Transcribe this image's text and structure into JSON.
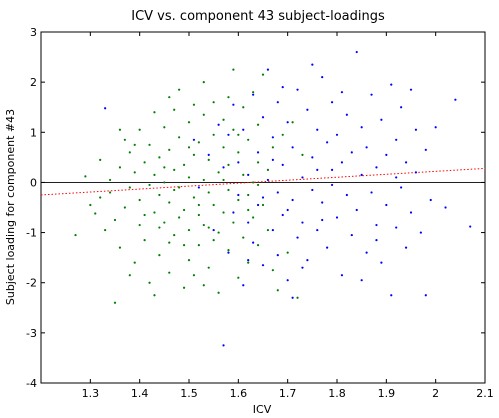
{
  "chart_data": {
    "type": "scatter",
    "title": "ICV vs. component 43 subject-loadings",
    "xlabel": "ICV",
    "ylabel": "Subject loading for component #43",
    "xlim": [
      1.2,
      2.1
    ],
    "ylim": [
      -4,
      3
    ],
    "xticks": [
      "1.3",
      "1.4",
      "1.5",
      "1.6",
      "1.7",
      "1.8",
      "1.9",
      "2",
      "2.1"
    ],
    "yticks": [
      "-4",
      "-3",
      "-2",
      "-1",
      "0",
      "1",
      "2",
      "3"
    ],
    "grid": false,
    "colors": {
      "group_green": "#007f00",
      "group_blue": "#0000ff",
      "fit_line": "#ff0000",
      "zero_line": "#000000"
    },
    "reference_line_y": 0,
    "fit_line": {
      "x": [
        1.2,
        2.1
      ],
      "y": [
        -0.25,
        0.28
      ]
    },
    "series": [
      {
        "points": [
          [
            1.27,
            -1.05
          ],
          [
            1.29,
            0.12
          ],
          [
            1.3,
            -0.45
          ],
          [
            1.31,
            -0.62
          ],
          [
            1.32,
            -0.3
          ],
          [
            1.32,
            0.45
          ],
          [
            1.33,
            -0.95
          ],
          [
            1.34,
            -0.2
          ],
          [
            1.34,
            0.05
          ],
          [
            1.35,
            -2.4
          ],
          [
            1.35,
            -0.75
          ],
          [
            1.36,
            0.3
          ],
          [
            1.36,
            -1.3
          ],
          [
            1.37,
            0.85
          ],
          [
            1.37,
            -0.5
          ],
          [
            1.38,
            -0.1
          ],
          [
            1.38,
            0.6
          ],
          [
            1.39,
            -1.6
          ],
          [
            1.39,
            0.2
          ],
          [
            1.4,
            -0.85
          ],
          [
            1.4,
            1.05
          ],
          [
            1.4,
            -0.35
          ],
          [
            1.41,
            0.4
          ],
          [
            1.41,
            -1.15
          ],
          [
            1.42,
            -0.05
          ],
          [
            1.42,
            0.75
          ],
          [
            1.42,
            -2.0
          ],
          [
            1.43,
            -0.6
          ],
          [
            1.43,
            0.15
          ],
          [
            1.43,
            1.4
          ],
          [
            1.44,
            -1.45
          ],
          [
            1.44,
            0.5
          ],
          [
            1.44,
            -0.25
          ],
          [
            1.45,
            1.1
          ],
          [
            1.45,
            -0.8
          ],
          [
            1.45,
            0.0
          ],
          [
            1.46,
            -1.8
          ],
          [
            1.46,
            0.65
          ],
          [
            1.46,
            -0.4
          ],
          [
            1.46,
            1.7
          ],
          [
            1.47,
            -1.05
          ],
          [
            1.47,
            0.25
          ],
          [
            1.47,
            -0.15
          ],
          [
            1.48,
            0.9
          ],
          [
            1.48,
            -0.7
          ],
          [
            1.48,
            1.85
          ],
          [
            1.49,
            -2.1
          ],
          [
            1.49,
            0.35
          ],
          [
            1.49,
            -0.55
          ],
          [
            1.5,
            1.2
          ],
          [
            1.5,
            -0.95
          ],
          [
            1.5,
            0.1
          ],
          [
            1.5,
            -1.55
          ],
          [
            1.51,
            0.55
          ],
          [
            1.51,
            -0.3
          ],
          [
            1.51,
            1.55
          ],
          [
            1.52,
            -0.65
          ],
          [
            1.52,
            0.8
          ],
          [
            1.52,
            -1.25
          ],
          [
            1.53,
            0.05
          ],
          [
            1.53,
            1.35
          ],
          [
            1.53,
            -0.85
          ],
          [
            1.53,
            2.0
          ],
          [
            1.54,
            -0.2
          ],
          [
            1.54,
            0.45
          ],
          [
            1.54,
            -1.7
          ],
          [
            1.55,
            0.95
          ],
          [
            1.55,
            -0.45
          ],
          [
            1.55,
            1.6
          ],
          [
            1.56,
            -1.0
          ],
          [
            1.56,
            0.2
          ],
          [
            1.56,
            -2.2
          ],
          [
            1.57,
            0.7
          ],
          [
            1.57,
            -0.6
          ],
          [
            1.57,
            1.25
          ],
          [
            1.58,
            -1.35
          ],
          [
            1.58,
            0.35
          ],
          [
            1.58,
            -0.15
          ],
          [
            1.59,
            1.05
          ],
          [
            1.59,
            -0.8
          ],
          [
            1.59,
            2.25
          ],
          [
            1.6,
            -0.35
          ],
          [
            1.6,
            0.6
          ],
          [
            1.6,
            -1.9
          ],
          [
            1.61,
            0.15
          ],
          [
            1.61,
            1.5
          ],
          [
            1.61,
            -1.1
          ],
          [
            1.62,
            -0.25
          ],
          [
            1.62,
            0.85
          ],
          [
            1.62,
            -1.6
          ],
          [
            1.63,
            1.8
          ],
          [
            1.63,
            0.0
          ],
          [
            1.63,
            -0.7
          ],
          [
            1.64,
            0.4
          ],
          [
            1.64,
            -1.25
          ],
          [
            1.64,
            1.15
          ],
          [
            1.65,
            -0.45
          ],
          [
            1.65,
            2.15
          ],
          [
            1.66,
            -0.95
          ],
          [
            1.66,
            0.25
          ],
          [
            1.67,
            -1.75
          ],
          [
            1.67,
            0.7
          ],
          [
            1.68,
            -2.15
          ],
          [
            1.69,
            0.95
          ],
          [
            1.7,
            -1.4
          ],
          [
            1.71,
            1.2
          ],
          [
            1.72,
            -2.3
          ],
          [
            1.73,
            0.55
          ],
          [
            1.48,
            -0.1
          ],
          [
            1.43,
            -2.25
          ],
          [
            1.38,
            -1.85
          ],
          [
            1.52,
            -0.45
          ],
          [
            1.45,
            0.3
          ],
          [
            1.55,
            -1.15
          ],
          [
            1.5,
            0.7
          ],
          [
            1.41,
            -0.65
          ],
          [
            1.57,
            0.05
          ],
          [
            1.62,
            -0.55
          ],
          [
            1.47,
            1.45
          ],
          [
            1.53,
            -2.05
          ],
          [
            1.36,
            1.05
          ],
          [
            1.44,
            -0.9
          ],
          [
            1.58,
            1.7
          ],
          [
            1.49,
            -1.25
          ],
          [
            1.6,
            0.95
          ],
          [
            1.54,
            -0.9
          ],
          [
            1.46,
            -1.2
          ],
          [
            1.51,
            -1.85
          ],
          [
            1.39,
            0.75
          ],
          [
            1.64,
            -0.05
          ]
        ]
      },
      {
        "points": [
          [
            1.33,
            1.48
          ],
          [
            1.51,
            0.85
          ],
          [
            1.52,
            -0.1
          ],
          [
            1.54,
            0.55
          ],
          [
            1.55,
            -0.95
          ],
          [
            1.56,
            1.15
          ],
          [
            1.57,
            -3.25
          ],
          [
            1.57,
            0.3
          ],
          [
            1.58,
            -1.4
          ],
          [
            1.58,
            0.95
          ],
          [
            1.59,
            -0.6
          ],
          [
            1.59,
            1.55
          ],
          [
            1.6,
            -0.25
          ],
          [
            1.6,
            0.4
          ],
          [
            1.61,
            -2.05
          ],
          [
            1.61,
            1.05
          ],
          [
            1.62,
            -0.8
          ],
          [
            1.62,
            0.15
          ],
          [
            1.63,
            1.75
          ],
          [
            1.63,
            -1.2
          ],
          [
            1.64,
            0.6
          ],
          [
            1.64,
            -0.45
          ],
          [
            1.65,
            1.3
          ],
          [
            1.65,
            -1.65
          ],
          [
            1.66,
            0.05
          ],
          [
            1.66,
            2.25
          ],
          [
            1.67,
            -0.95
          ],
          [
            1.67,
            0.9
          ],
          [
            1.68,
            -0.2
          ],
          [
            1.68,
            1.6
          ],
          [
            1.68,
            -1.45
          ],
          [
            1.69,
            0.35
          ],
          [
            1.69,
            -0.65
          ],
          [
            1.7,
            1.2
          ],
          [
            1.7,
            -1.95
          ],
          [
            1.71,
            0.7
          ],
          [
            1.71,
            -0.35
          ],
          [
            1.72,
            1.85
          ],
          [
            1.72,
            -1.1
          ],
          [
            1.73,
            0.1
          ],
          [
            1.73,
            -0.8
          ],
          [
            1.74,
            1.45
          ],
          [
            1.74,
            -1.55
          ],
          [
            1.75,
            0.5
          ],
          [
            1.75,
            -0.15
          ],
          [
            1.76,
            1.05
          ],
          [
            1.76,
            -0.95
          ],
          [
            1.77,
            2.1
          ],
          [
            1.77,
            -0.4
          ],
          [
            1.78,
            0.8
          ],
          [
            1.78,
            -1.3
          ],
          [
            1.79,
            0.25
          ],
          [
            1.79,
            1.6
          ],
          [
            1.8,
            -0.7
          ],
          [
            1.8,
            0.95
          ],
          [
            1.81,
            -1.85
          ],
          [
            1.81,
            0.4
          ],
          [
            1.82,
            -0.25
          ],
          [
            1.82,
            1.35
          ],
          [
            1.83,
            -1.05
          ],
          [
            1.83,
            0.6
          ],
          [
            1.84,
            2.6
          ],
          [
            1.84,
            -0.55
          ],
          [
            1.85,
            0.15
          ],
          [
            1.85,
            1.1
          ],
          [
            1.86,
            -1.4
          ],
          [
            1.86,
            0.7
          ],
          [
            1.87,
            -0.2
          ],
          [
            1.87,
            1.75
          ],
          [
            1.88,
            -0.85
          ],
          [
            1.88,
            0.3
          ],
          [
            1.89,
            -1.6
          ],
          [
            1.89,
            1.25
          ],
          [
            1.9,
            -0.45
          ],
          [
            1.9,
            0.55
          ],
          [
            1.91,
            -2.25
          ],
          [
            1.91,
            1.95
          ],
          [
            1.92,
            -0.9
          ],
          [
            1.92,
            0.85
          ],
          [
            1.93,
            -0.1
          ],
          [
            1.93,
            1.5
          ],
          [
            1.94,
            -1.3
          ],
          [
            1.94,
            0.4
          ],
          [
            1.95,
            1.85
          ],
          [
            1.95,
            -0.6
          ],
          [
            1.96,
            0.2
          ],
          [
            1.96,
            1.05
          ],
          [
            1.97,
            -1.0
          ],
          [
            1.98,
            0.65
          ],
          [
            1.99,
            -0.35
          ],
          [
            2.0,
            1.1
          ],
          [
            2.02,
            -0.5
          ],
          [
            2.04,
            1.65
          ],
          [
            2.07,
            -0.88
          ],
          [
            1.98,
            -2.25
          ],
          [
            1.71,
            -2.3
          ],
          [
            1.75,
            2.35
          ],
          [
            1.65,
            -0.3
          ],
          [
            1.77,
            -0.75
          ],
          [
            1.69,
            1.9
          ],
          [
            1.73,
            -1.7
          ],
          [
            1.79,
            -0.05
          ],
          [
            1.85,
            -1.95
          ],
          [
            1.62,
            -1.55
          ],
          [
            1.67,
            0.45
          ],
          [
            1.81,
            1.8
          ],
          [
            1.88,
            -1.15
          ],
          [
            1.76,
            0.25
          ],
          [
            1.92,
            0.1
          ],
          [
            1.7,
            -0.55
          ]
        ]
      }
    ]
  }
}
